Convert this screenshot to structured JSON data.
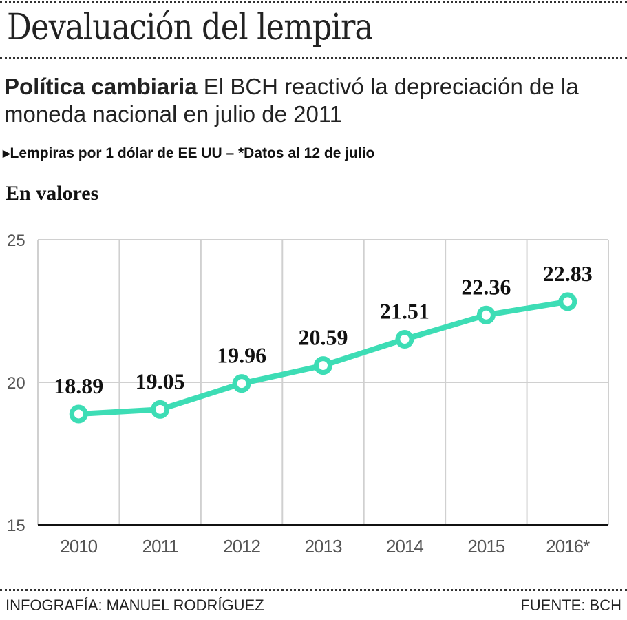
{
  "header": {
    "title": "Devaluación del lempira",
    "subtitle_bold": "Política cambiaria",
    "subtitle_rest": " El BCH reactivó la depreciación de la moneda nacional en julio de 2011",
    "unit_marker": "▸",
    "unit_note": "Lempiras por 1 dólar de EE UU – *Datos al 12 de julio",
    "section_title": "En valores"
  },
  "footer": {
    "credit": "INFOGRAFÍA: MANUEL RODRÍGUEZ",
    "source": "FUENTE: BCH"
  },
  "colors": {
    "line": "#3dddb5",
    "grid": "#d0d0d0",
    "axis": "#111111"
  },
  "chart_data": {
    "type": "line",
    "title": "En valores",
    "xlabel": "",
    "ylabel": "",
    "categories": [
      "2010",
      "2011",
      "2012",
      "2013",
      "2014",
      "2015",
      "2016*"
    ],
    "series": [
      {
        "name": "Lempiras por 1 dólar de EE UU",
        "values": [
          18.89,
          19.05,
          19.96,
          20.59,
          21.51,
          22.36,
          22.83
        ]
      }
    ],
    "data_labels": [
      "18.89",
      "19.05",
      "19.96",
      "20.59",
      "21.51",
      "22.36",
      "22.83"
    ],
    "ylim": [
      15,
      25
    ],
    "yticks": [
      15,
      20,
      25
    ],
    "ytick_labels": [
      "15",
      "20",
      "25"
    ],
    "grid": true,
    "legend": "none"
  }
}
